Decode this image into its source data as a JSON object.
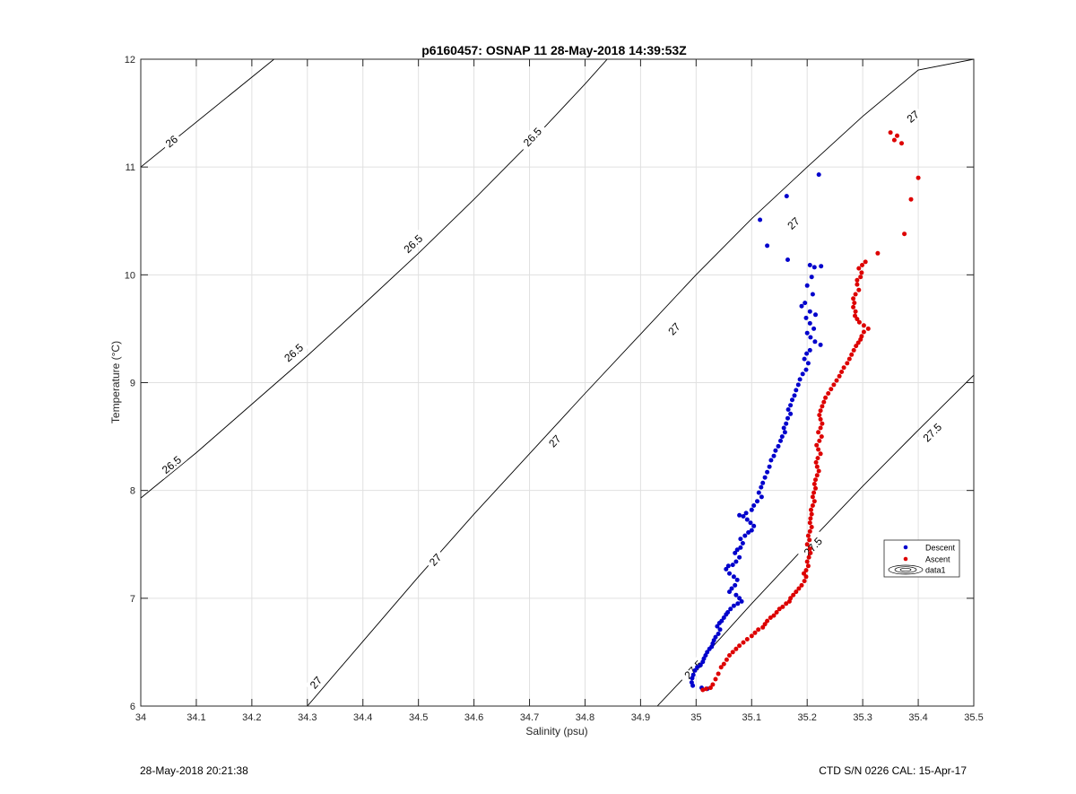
{
  "footer": {
    "left": "28-May-2018 20:21:38",
    "right": "CTD S/N 0226  CAL: 15-Apr-17"
  },
  "chart_data": {
    "type": "scatter",
    "title": "p6160457: OSNAP 11 28-May-2018 14:39:53Z",
    "xlabel": "Salinity (psu)",
    "ylabel": "Temperature (°C)",
    "xlim": [
      34,
      35.5
    ],
    "ylim": [
      6,
      12
    ],
    "x_ticks": [
      34,
      34.1,
      34.2,
      34.3,
      34.4,
      34.5,
      34.6,
      34.7,
      34.8,
      34.9,
      35,
      35.1,
      35.2,
      35.3,
      35.4,
      35.5
    ],
    "x_tick_labels": [
      "34",
      "34.1",
      "34.2",
      "34.3",
      "34.4",
      "34.5",
      "34.6",
      "34.7",
      "34.8",
      "34.9",
      "35",
      "35.1",
      "35.2",
      "35.3",
      "35.4",
      "35.5"
    ],
    "y_ticks": [
      6,
      7,
      8,
      9,
      10,
      11,
      12
    ],
    "y_tick_labels": [
      "6",
      "7",
      "8",
      "9",
      "10",
      "11",
      "12"
    ],
    "grid": true,
    "legend_position": "right",
    "legend": [
      "Descent",
      "Ascent",
      "data1"
    ],
    "colors": {
      "descent": "#0000cc",
      "ascent": "#dd0000",
      "contour": "#000000",
      "grid": "#e0e0e0"
    },
    "contours": [
      {
        "level": "26",
        "points": [
          [
            34,
            11.0
          ],
          [
            34.24,
            12.0
          ]
        ],
        "labels": [
          {
            "x": 34.055,
            "y": 11.24,
            "text": "26"
          }
        ]
      },
      {
        "level": "26.5",
        "points": [
          [
            34,
            7.93
          ],
          [
            34.1,
            8.35
          ],
          [
            34.2,
            8.8
          ],
          [
            34.3,
            9.25
          ],
          [
            34.4,
            9.72
          ],
          [
            34.5,
            10.2
          ],
          [
            34.6,
            10.7
          ],
          [
            34.7,
            11.22
          ],
          [
            34.8,
            11.77
          ],
          [
            34.84,
            12.0
          ]
        ],
        "labels": [
          {
            "x": 34.055,
            "y": 8.24,
            "text": "26.5"
          },
          {
            "x": 34.275,
            "y": 9.28,
            "text": "26.5"
          },
          {
            "x": 34.49,
            "y": 10.29,
            "text": "26.5"
          },
          {
            "x": 34.705,
            "y": 11.28,
            "text": "26.5"
          }
        ]
      },
      {
        "level": "27",
        "points": [
          [
            34.3,
            6.0
          ],
          [
            34.4,
            6.6
          ],
          [
            34.5,
            7.2
          ],
          [
            34.6,
            7.78
          ],
          [
            34.7,
            8.34
          ],
          [
            34.8,
            8.9
          ],
          [
            34.9,
            9.45
          ],
          [
            35.0,
            10.0
          ],
          [
            35.1,
            10.52
          ],
          [
            35.2,
            11.0
          ],
          [
            35.3,
            11.47
          ],
          [
            35.4,
            11.9
          ],
          [
            35.5,
            12.0
          ]
        ],
        "labels": [
          {
            "x": 34.315,
            "y": 6.22,
            "text": "27"
          },
          {
            "x": 34.53,
            "y": 7.36,
            "text": "27"
          },
          {
            "x": 34.745,
            "y": 8.46,
            "text": "27"
          },
          {
            "x": 34.96,
            "y": 9.5,
            "text": "27"
          },
          {
            "x": 35.175,
            "y": 10.48,
            "text": "27"
          },
          {
            "x": 35.39,
            "y": 11.47,
            "text": "27"
          }
        ]
      },
      {
        "level": "27.5",
        "points": [
          [
            34.93,
            6.0
          ],
          [
            35.0,
            6.38
          ],
          [
            35.1,
            6.95
          ],
          [
            35.2,
            7.5
          ],
          [
            35.3,
            8.04
          ],
          [
            35.4,
            8.56
          ],
          [
            35.5,
            9.07
          ]
        ],
        "labels": [
          {
            "x": 34.995,
            "y": 6.34,
            "text": "27.5"
          },
          {
            "x": 35.21,
            "y": 7.48,
            "text": "27.5"
          },
          {
            "x": 35.425,
            "y": 8.54,
            "text": "27.5"
          }
        ]
      }
    ],
    "series": [
      {
        "name": "Descent",
        "color": "#0000cc",
        "points": [
          [
            35.221,
            10.93
          ],
          [
            35.163,
            10.73
          ],
          [
            35.115,
            10.51
          ],
          [
            35.128,
            10.27
          ],
          [
            35.165,
            10.14
          ],
          [
            35.205,
            10.09
          ],
          [
            35.213,
            10.07
          ],
          [
            35.225,
            10.08
          ],
          [
            35.208,
            9.98
          ],
          [
            35.2,
            9.9
          ],
          [
            35.21,
            9.82
          ],
          [
            35.196,
            9.74
          ],
          [
            35.19,
            9.71
          ],
          [
            35.205,
            9.66
          ],
          [
            35.215,
            9.63
          ],
          [
            35.198,
            9.6
          ],
          [
            35.205,
            9.55
          ],
          [
            35.212,
            9.5
          ],
          [
            35.2,
            9.46
          ],
          [
            35.206,
            9.42
          ],
          [
            35.214,
            9.38
          ],
          [
            35.224,
            9.35
          ],
          [
            35.205,
            9.3
          ],
          [
            35.199,
            9.27
          ],
          [
            35.195,
            9.22
          ],
          [
            35.202,
            9.18
          ],
          [
            35.198,
            9.12
          ],
          [
            35.192,
            9.08
          ],
          [
            35.187,
            9.03
          ],
          [
            35.184,
            8.98
          ],
          [
            35.18,
            8.93
          ],
          [
            35.177,
            8.88
          ],
          [
            35.173,
            8.84
          ],
          [
            35.17,
            8.79
          ],
          [
            35.166,
            8.75
          ],
          [
            35.17,
            8.71
          ],
          [
            35.165,
            8.67
          ],
          [
            35.162,
            8.62
          ],
          [
            35.158,
            8.58
          ],
          [
            35.16,
            8.54
          ],
          [
            35.155,
            8.5
          ],
          [
            35.152,
            8.46
          ],
          [
            35.148,
            8.41
          ],
          [
            35.143,
            8.37
          ],
          [
            35.14,
            8.32
          ],
          [
            35.135,
            8.28
          ],
          [
            35.132,
            8.22
          ],
          [
            35.128,
            8.17
          ],
          [
            35.124,
            8.12
          ],
          [
            35.12,
            8.07
          ],
          [
            35.117,
            8.03
          ],
          [
            35.113,
            7.98
          ],
          [
            35.118,
            7.94
          ],
          [
            35.11,
            7.9
          ],
          [
            35.104,
            7.86
          ],
          [
            35.1,
            7.82
          ],
          [
            35.09,
            7.79
          ],
          [
            35.085,
            7.76
          ],
          [
            35.078,
            7.77
          ],
          [
            35.092,
            7.73
          ],
          [
            35.098,
            7.7
          ],
          [
            35.104,
            7.67
          ],
          [
            35.1,
            7.63
          ],
          [
            35.094,
            7.61
          ],
          [
            35.088,
            7.58
          ],
          [
            35.08,
            7.55
          ],
          [
            35.084,
            7.51
          ],
          [
            35.08,
            7.47
          ],
          [
            35.074,
            7.45
          ],
          [
            35.07,
            7.42
          ],
          [
            35.078,
            7.38
          ],
          [
            35.072,
            7.34
          ],
          [
            35.066,
            7.31
          ],
          [
            35.058,
            7.3
          ],
          [
            35.054,
            7.27
          ],
          [
            35.06,
            7.23
          ],
          [
            35.068,
            7.2
          ],
          [
            35.074,
            7.17
          ],
          [
            35.07,
            7.12
          ],
          [
            35.064,
            7.09
          ],
          [
            35.06,
            7.06
          ],
          [
            35.072,
            7.03
          ],
          [
            35.078,
            7.0
          ],
          [
            35.082,
            6.97
          ],
          [
            35.075,
            6.95
          ],
          [
            35.068,
            6.93
          ],
          [
            35.062,
            6.9
          ],
          [
            35.057,
            6.87
          ],
          [
            35.054,
            6.85
          ],
          [
            35.05,
            6.82
          ],
          [
            35.046,
            6.79
          ],
          [
            35.042,
            6.77
          ],
          [
            35.038,
            6.74
          ],
          [
            35.043,
            6.71
          ],
          [
            35.04,
            6.67
          ],
          [
            35.035,
            6.64
          ],
          [
            35.032,
            6.61
          ],
          [
            35.03,
            6.58
          ],
          [
            35.028,
            6.55
          ],
          [
            35.024,
            6.53
          ],
          [
            35.02,
            6.5
          ],
          [
            35.017,
            6.47
          ],
          [
            35.014,
            6.44
          ],
          [
            35.012,
            6.41
          ],
          [
            35.008,
            6.38
          ],
          [
            35.002,
            6.36
          ],
          [
            34.998,
            6.33
          ],
          [
            34.995,
            6.29
          ],
          [
            34.993,
            6.26
          ],
          [
            34.992,
            6.22
          ],
          [
            34.994,
            6.19
          ],
          [
            35.01,
            6.17
          ],
          [
            35.02,
            6.16
          ]
        ]
      },
      {
        "name": "Ascent",
        "color": "#dd0000",
        "points": [
          [
            35.4,
            10.9
          ],
          [
            35.387,
            10.7
          ],
          [
            35.375,
            10.38
          ],
          [
            35.35,
            11.32
          ],
          [
            35.362,
            11.29
          ],
          [
            35.37,
            11.22
          ],
          [
            35.357,
            11.25
          ],
          [
            35.327,
            10.2
          ],
          [
            35.305,
            10.12
          ],
          [
            35.299,
            10.09
          ],
          [
            35.293,
            10.06
          ],
          [
            35.298,
            10.02
          ],
          [
            35.296,
            9.98
          ],
          [
            35.29,
            9.95
          ],
          [
            35.29,
            9.91
          ],
          [
            35.293,
            9.86
          ],
          [
            35.287,
            9.82
          ],
          [
            35.283,
            9.78
          ],
          [
            35.285,
            9.74
          ],
          [
            35.283,
            9.7
          ],
          [
            35.287,
            9.66
          ],
          [
            35.286,
            9.62
          ],
          [
            35.29,
            9.59
          ],
          [
            35.294,
            9.56
          ],
          [
            35.302,
            9.53
          ],
          [
            35.31,
            9.5
          ],
          [
            35.302,
            9.47
          ],
          [
            35.298,
            9.43
          ],
          [
            35.296,
            9.4
          ],
          [
            35.292,
            9.37
          ],
          [
            35.288,
            9.34
          ],
          [
            35.284,
            9.3
          ],
          [
            35.28,
            9.26
          ],
          [
            35.276,
            9.22
          ],
          [
            35.272,
            9.18
          ],
          [
            35.266,
            9.14
          ],
          [
            35.262,
            9.1
          ],
          [
            35.258,
            9.06
          ],
          [
            35.253,
            9.02
          ],
          [
            35.248,
            8.98
          ],
          [
            35.243,
            8.94
          ],
          [
            35.238,
            8.9
          ],
          [
            35.233,
            8.86
          ],
          [
            35.23,
            8.82
          ],
          [
            35.227,
            8.78
          ],
          [
            35.224,
            8.74
          ],
          [
            35.222,
            8.7
          ],
          [
            35.224,
            8.66
          ],
          [
            35.227,
            8.62
          ],
          [
            35.224,
            8.58
          ],
          [
            35.22,
            8.54
          ],
          [
            35.226,
            8.5
          ],
          [
            35.222,
            8.46
          ],
          [
            35.217,
            8.42
          ],
          [
            35.22,
            8.38
          ],
          [
            35.224,
            8.34
          ],
          [
            35.219,
            8.3
          ],
          [
            35.216,
            8.26
          ],
          [
            35.218,
            8.22
          ],
          [
            35.221,
            8.18
          ],
          [
            35.218,
            8.14
          ],
          [
            35.215,
            8.1
          ],
          [
            35.213,
            8.06
          ],
          [
            35.215,
            8.02
          ],
          [
            35.212,
            7.98
          ],
          [
            35.21,
            7.94
          ],
          [
            35.213,
            7.9
          ],
          [
            35.21,
            7.86
          ],
          [
            35.207,
            7.82
          ],
          [
            35.208,
            7.78
          ],
          [
            35.206,
            7.74
          ],
          [
            35.205,
            7.7
          ],
          [
            35.208,
            7.66
          ],
          [
            35.205,
            7.62
          ],
          [
            35.202,
            7.58
          ],
          [
            35.204,
            7.54
          ],
          [
            35.2,
            7.5
          ],
          [
            35.205,
            7.46
          ],
          [
            35.206,
            7.42
          ],
          [
            35.203,
            7.38
          ],
          [
            35.2,
            7.34
          ],
          [
            35.202,
            7.3
          ],
          [
            35.198,
            7.26
          ],
          [
            35.194,
            7.23
          ],
          [
            35.198,
            7.2
          ],
          [
            35.195,
            7.16
          ],
          [
            35.19,
            7.12
          ],
          [
            35.185,
            7.09
          ],
          [
            35.18,
            7.06
          ],
          [
            35.175,
            7.03
          ],
          [
            35.17,
            7.0
          ],
          [
            35.168,
            6.97
          ],
          [
            35.162,
            6.95
          ],
          [
            35.156,
            6.92
          ],
          [
            35.15,
            6.9
          ],
          [
            35.145,
            6.87
          ],
          [
            35.14,
            6.84
          ],
          [
            35.134,
            6.82
          ],
          [
            35.128,
            6.79
          ],
          [
            35.124,
            6.76
          ],
          [
            35.12,
            6.73
          ],
          [
            35.112,
            6.71
          ],
          [
            35.106,
            6.68
          ],
          [
            35.1,
            6.65
          ],
          [
            35.092,
            6.62
          ],
          [
            35.085,
            6.59
          ],
          [
            35.078,
            6.56
          ],
          [
            35.072,
            6.53
          ],
          [
            35.066,
            6.5
          ],
          [
            35.06,
            6.47
          ],
          [
            35.055,
            6.43
          ],
          [
            35.05,
            6.39
          ],
          [
            35.045,
            6.36
          ],
          [
            35.04,
            6.3
          ],
          [
            35.035,
            6.25
          ],
          [
            35.03,
            6.2
          ],
          [
            35.026,
            6.17
          ],
          [
            35.018,
            6.16
          ],
          [
            35.012,
            6.15
          ]
        ]
      }
    ]
  }
}
